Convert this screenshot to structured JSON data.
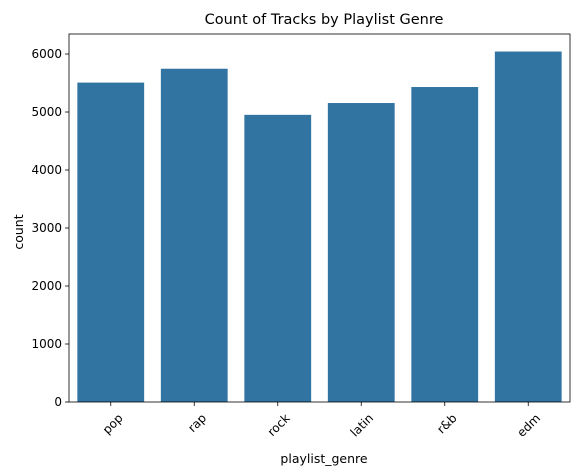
{
  "chart_data": {
    "type": "bar",
    "title": "Count of Tracks by Playlist Genre",
    "xlabel": "playlist_genre",
    "ylabel": "count",
    "categories": [
      "pop",
      "rap",
      "rock",
      "latin",
      "r&b",
      "edm"
    ],
    "values": [
      5507,
      5746,
      4951,
      5155,
      5431,
      6043
    ],
    "ylim": [
      0,
      6345
    ],
    "yticks": [
      0,
      1000,
      2000,
      3000,
      4000,
      5000,
      6000
    ],
    "bar_color": "#3274a1",
    "grid": false,
    "x_tick_rotation": 45
  }
}
